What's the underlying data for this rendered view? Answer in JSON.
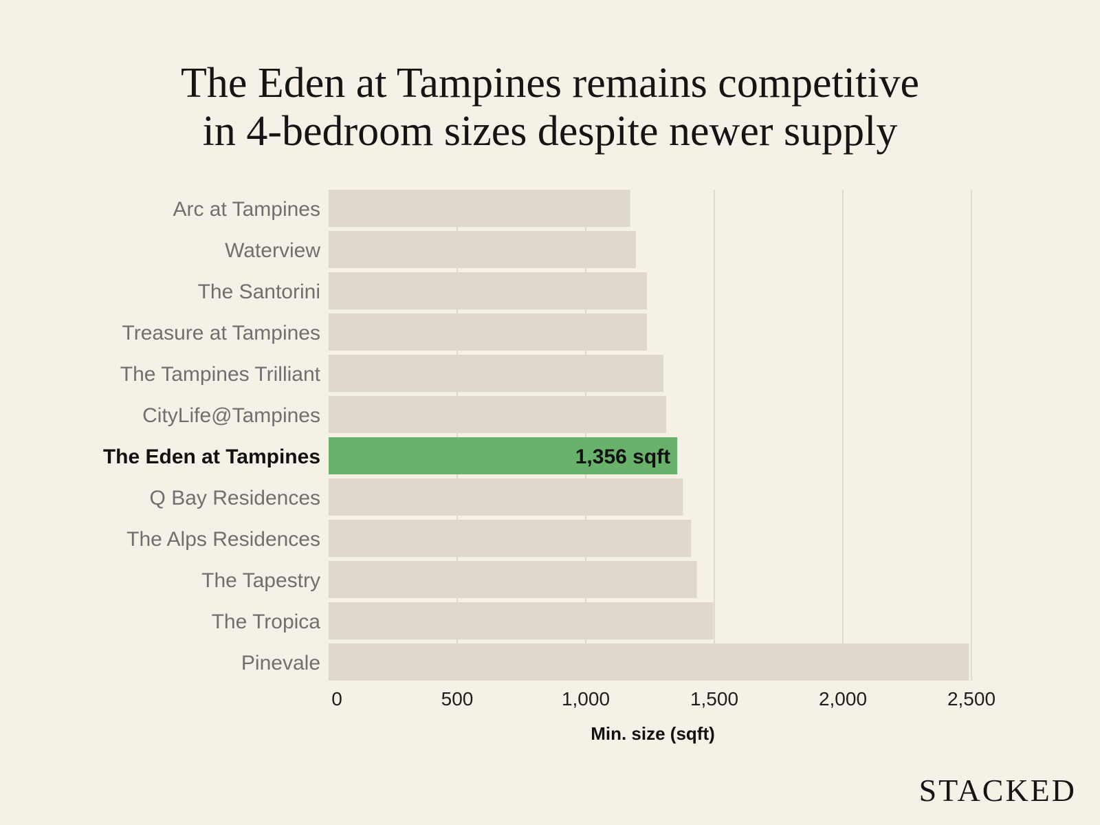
{
  "title": {
    "line1": "The Eden at Tampines remains competitive",
    "line2": "in 4-bedroom sizes despite newer supply"
  },
  "brand": {
    "name": "STACKED"
  },
  "colors": {
    "background": "#F5F1E6",
    "bar": "#DED8CD",
    "highlight_bar": "#68B26B",
    "grid": "#D9D3C7",
    "label": "#6F6F6F",
    "highlight_label": "#111111"
  },
  "chart_data": {
    "type": "bar",
    "orientation": "horizontal",
    "title": "The Eden at Tampines remains competitive in 4-bedroom sizes despite newer supply",
    "xlabel": "Min. size (sqft)",
    "ylabel": "",
    "xlim": [
      0,
      2500
    ],
    "xticks": [
      0,
      500,
      1000,
      1500,
      2000,
      2500
    ],
    "xtick_labels": [
      "0",
      "500",
      "1,000",
      "1,500",
      "2,000",
      "2,500"
    ],
    "grid": "vertical",
    "categories": [
      "Arc at Tampines",
      "Waterview",
      "The Santorini",
      "Treasure at Tampines",
      "The Tampines Trilliant",
      "CityLife@Tampines",
      "The Eden at Tampines",
      "Q Bay Residences",
      "The Alps Residences",
      "The Tapestry",
      "The Tropica",
      "Pinevale"
    ],
    "values": [
      1173,
      1195,
      1238,
      1238,
      1302,
      1313,
      1356,
      1378,
      1410,
      1432,
      1496,
      2490
    ],
    "highlight": "The Eden at Tampines",
    "annotations": [
      {
        "category": "The Eden at Tampines",
        "text": "1,356 sqft"
      }
    ]
  }
}
